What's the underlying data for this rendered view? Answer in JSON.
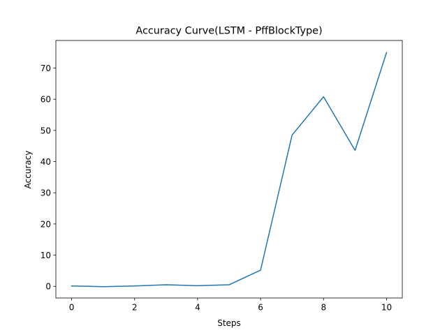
{
  "chart_data": {
    "type": "line",
    "title": "Accuracy Curve(LSTM - PffBlockType)",
    "xlabel": "Steps",
    "ylabel": "Accuracy",
    "x": [
      0,
      1,
      2,
      3,
      4,
      5,
      6,
      7,
      8,
      9,
      10
    ],
    "series": [
      {
        "values": [
          0.1,
          -0.1,
          0.1,
          0.5,
          0.2,
          0.5,
          5.2,
          48.5,
          60.8,
          43.6,
          75.0
        ]
      }
    ],
    "xlim": [
      -0.5,
      10.5
    ],
    "ylim": [
      -3.75,
      78.85
    ],
    "xticks": [
      0,
      2,
      4,
      6,
      8,
      10
    ],
    "yticks": [
      0,
      10,
      20,
      30,
      40,
      50,
      60,
      70
    ],
    "grid": false,
    "line_color": "#1f77b4"
  }
}
